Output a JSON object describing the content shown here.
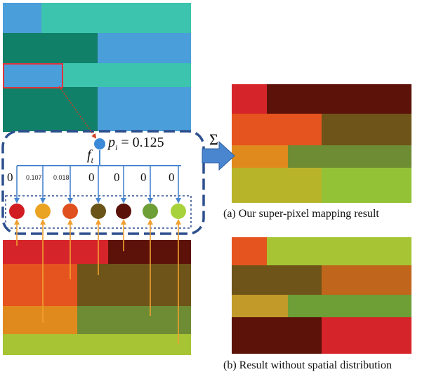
{
  "top_grid": {
    "colors": {
      "light_blue": "#4a9ed9",
      "teal": "#3cc4ae",
      "dark_teal": "#118068",
      "selected_outline": "#e0343a"
    }
  },
  "bottom_grid": {
    "colors": {
      "red": "#d6252a",
      "dark_brown": "#5c1208",
      "orange": "#e5541e",
      "olive_brown": "#6e5418",
      "amber": "#e08a1e",
      "olive_green": "#6e8c34",
      "yellow_green": "#a6c433"
    }
  },
  "mapping": {
    "probability_label": "= 0.125",
    "probability_symbol": "p",
    "probability_subscript": "i",
    "feature_symbol": "f",
    "feature_subscript": "t",
    "sum_symbol": "Σ",
    "weights": [
      "0",
      "0.107",
      "0.018",
      "0",
      "0",
      "0",
      "0"
    ],
    "node_colors": [
      "#d11d22",
      "#eba322",
      "#e0501f",
      "#6a5418",
      "#5a1208",
      "#6e9e36",
      "#a8d23c"
    ],
    "pixel_color": "#3a8ad8",
    "border_color": "#2d4f8e",
    "arrow_blue": "#4a86d0",
    "arrow_orange": "#f0a030"
  },
  "result_a": {
    "caption": "(a) Our super-pixel mapping result"
  },
  "result_b": {
    "caption": "(b) Result without spatial distribution"
  }
}
